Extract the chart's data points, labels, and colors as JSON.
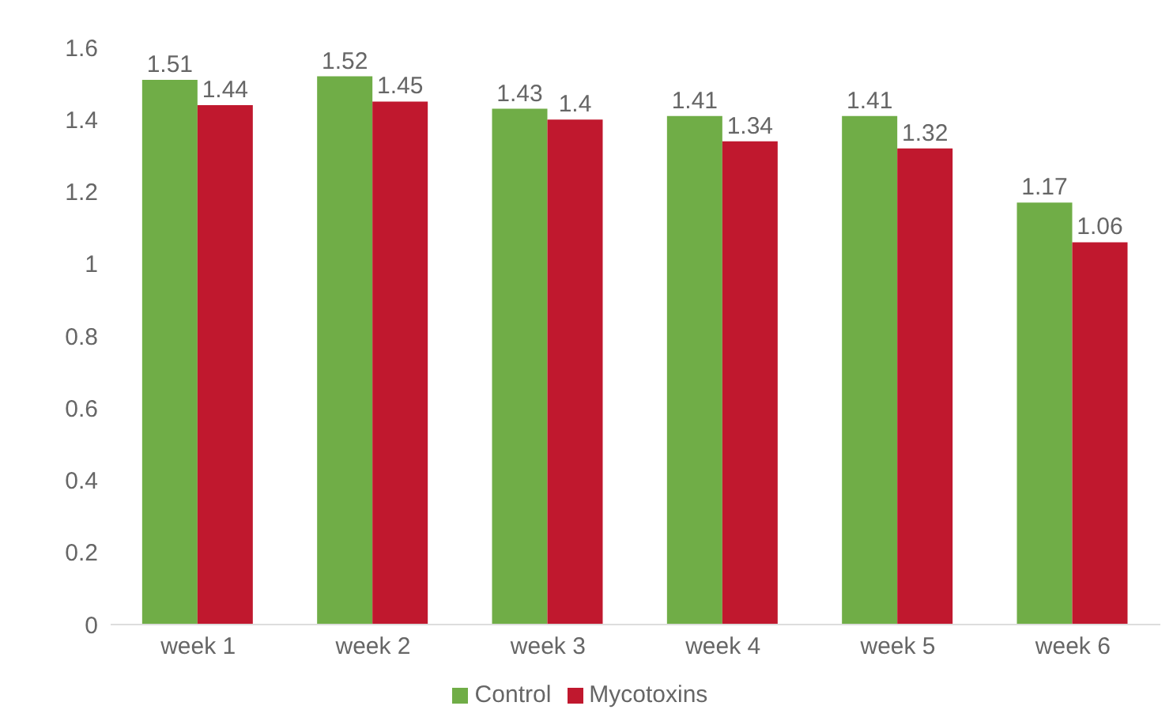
{
  "chart_data": {
    "type": "bar",
    "categories": [
      "week 1",
      "week 2",
      "week 3",
      "week 4",
      "week 5",
      "week 6"
    ],
    "series": [
      {
        "name": "Control",
        "color": "#70ad47",
        "values": [
          1.51,
          1.52,
          1.43,
          1.41,
          1.41,
          1.17
        ]
      },
      {
        "name": "Mycotoxins",
        "color": "#c0182e",
        "values": [
          1.44,
          1.45,
          1.4,
          1.34,
          1.32,
          1.06
        ]
      }
    ],
    "ylim": [
      0,
      1.6
    ],
    "yticks": [
      0,
      0.2,
      0.4,
      0.6,
      0.8,
      1,
      1.2,
      1.4,
      1.6
    ],
    "grid": false,
    "legend": "bottom",
    "data_labels": true
  }
}
